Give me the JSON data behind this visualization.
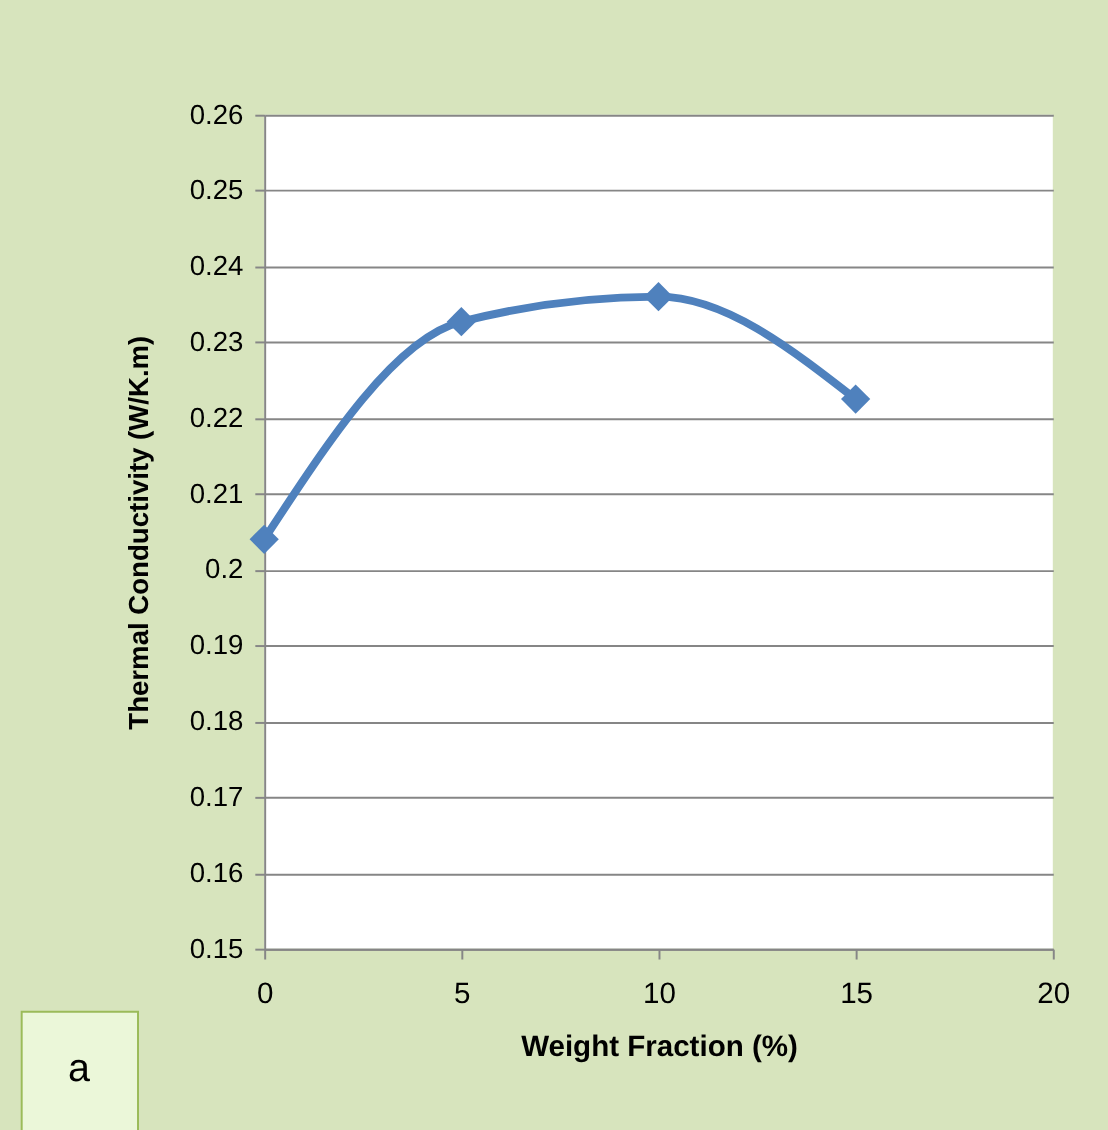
{
  "chart_data": {
    "type": "line",
    "xlabel": "Weight Fraction (%)",
    "ylabel": "Thermal Conductivity  (W/K.m)",
    "x": [
      0,
      5,
      10,
      15
    ],
    "series": [
      {
        "color": "#4f81bd",
        "values": [
          0.204,
          0.2327,
          0.236,
          0.2225
        ]
      }
    ],
    "xlim": [
      0,
      20
    ],
    "xticks": [
      0,
      5,
      10,
      15,
      20
    ],
    "ylim": [
      0.15,
      0.26
    ],
    "yticks": [
      0.15,
      0.16,
      0.17,
      0.18,
      0.19,
      0.2,
      0.21,
      0.22,
      0.23,
      0.24,
      0.25,
      0.26
    ],
    "grid": "y",
    "legend": false,
    "marker": "diamond",
    "line_style": "solid",
    "annotations": [
      "a"
    ]
  }
}
